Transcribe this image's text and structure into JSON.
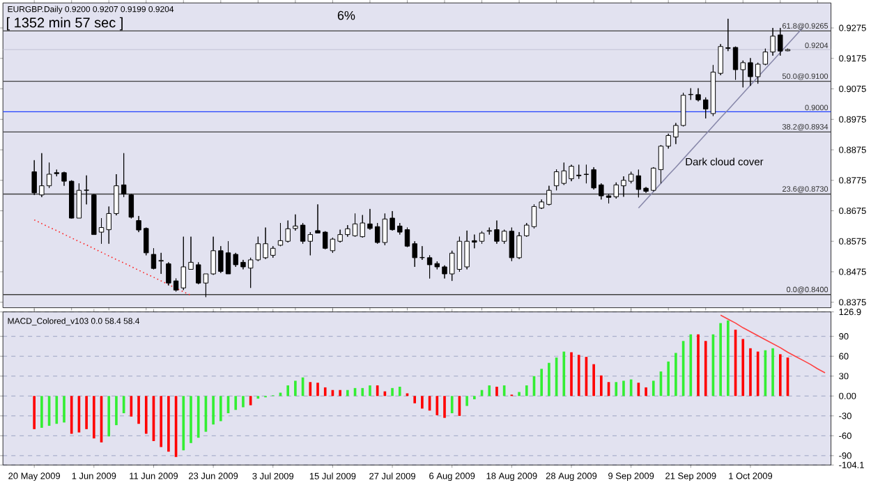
{
  "chart_data": [
    {
      "type": "candlestick",
      "title": "EURGBP.Daily 0.9200 0.9207 0.9199 0.9204",
      "annotations": [
        "[ 1352 min 57 sec ]",
        "6%",
        "Dark cloud cover"
      ],
      "tick_labels": "y",
      "categories": [
        null,
        null,
        null,
        null,
        null,
        null,
        null,
        null,
        null,
        null,
        null,
        null,
        null,
        null,
        null,
        null,
        null,
        null,
        null,
        null,
        null,
        null,
        null,
        null,
        null,
        null,
        null,
        null,
        null,
        null,
        null,
        null,
        null,
        null,
        null,
        null,
        null,
        null,
        null,
        null,
        null,
        null,
        null,
        null,
        null,
        null,
        null,
        null,
        null,
        null,
        null,
        null,
        null,
        null,
        null,
        null,
        null,
        null,
        null,
        null,
        null,
        null,
        null,
        null,
        null,
        null,
        null,
        null,
        null,
        null,
        null,
        null,
        null,
        null,
        null,
        null,
        null,
        null,
        null,
        null,
        null,
        null,
        null,
        null,
        null,
        null,
        null,
        null,
        null,
        null,
        null,
        null,
        null,
        null,
        null,
        null,
        null,
        null,
        null,
        null,
        null,
        null,
        null,
        null,
        null,
        null,
        null
      ],
      "ohlc": [
        [
          0.8803,
          0.8841,
          0.8727,
          0.8734
        ],
        [
          0.8727,
          0.8864,
          0.872,
          0.8757
        ],
        [
          0.8757,
          0.8833,
          0.875,
          0.8795
        ],
        [
          0.88,
          0.881,
          0.8788,
          0.8797
        ],
        [
          0.88,
          0.8803,
          0.8757,
          0.8772
        ],
        [
          0.8772,
          0.8775,
          0.865,
          0.8651
        ],
        [
          0.8651,
          0.8765,
          0.8651,
          0.8742
        ],
        [
          0.8742,
          0.8791,
          0.8696,
          0.8743
        ],
        [
          0.8727,
          0.873,
          0.8597,
          0.8597
        ],
        [
          0.8605,
          0.8651,
          0.8567,
          0.862
        ],
        [
          0.8613,
          0.8689,
          0.8567,
          0.8666
        ],
        [
          0.8666,
          0.8795,
          0.866,
          0.8757
        ],
        [
          0.876,
          0.8864,
          0.872,
          0.873
        ],
        [
          0.8727,
          0.873,
          0.865,
          0.8654
        ],
        [
          0.8643,
          0.8658,
          0.8605,
          0.8612
        ],
        [
          0.8617,
          0.862,
          0.8529,
          0.8537
        ],
        [
          0.8532,
          0.8552,
          0.8483,
          0.8486
        ],
        [
          0.851,
          0.8537,
          0.8468,
          0.8512
        ],
        [
          0.8501,
          0.8506,
          0.843,
          0.8438
        ],
        [
          0.8445,
          0.8453,
          0.841,
          0.8415
        ],
        [
          0.8422,
          0.859,
          0.8415,
          0.8491
        ],
        [
          0.8483,
          0.859,
          0.8483,
          0.8506
        ],
        [
          0.8498,
          0.8506,
          0.8434,
          0.8438
        ],
        [
          0.8438,
          0.8468,
          0.8392,
          0.8468
        ],
        [
          0.8468,
          0.859,
          0.8465,
          0.8544
        ],
        [
          0.8544,
          0.8559,
          0.8471,
          0.8476
        ],
        [
          0.8537,
          0.8575,
          0.8468,
          0.8468
        ],
        [
          0.8532,
          0.8537,
          0.8491,
          0.8498
        ],
        [
          0.8506,
          0.8514,
          0.8483,
          0.8491
        ],
        [
          0.8487,
          0.8521,
          0.8422,
          0.8514
        ],
        [
          0.8514,
          0.859,
          0.851,
          0.8567
        ],
        [
          0.8521,
          0.862,
          0.8517,
          0.8567
        ],
        [
          0.8529,
          0.8559,
          0.8521,
          0.8552
        ],
        [
          0.8562,
          0.8635,
          0.8559,
          0.8577
        ],
        [
          0.8575,
          0.8643,
          0.8571,
          0.8616
        ],
        [
          0.8617,
          0.8663,
          0.861,
          0.8625
        ],
        [
          0.8628,
          0.8635,
          0.8567,
          0.8575
        ],
        [
          0.8575,
          0.8605,
          0.8529,
          0.8597
        ],
        [
          0.861,
          0.8696,
          0.8602,
          0.8602
        ],
        [
          0.8605,
          0.8608,
          0.8549,
          0.8552
        ],
        [
          0.8544,
          0.8587,
          0.8537,
          0.8582
        ],
        [
          0.8575,
          0.8613,
          0.8571,
          0.8597
        ],
        [
          0.8597,
          0.8628,
          0.859,
          0.8616
        ],
        [
          0.8593,
          0.8666,
          0.859,
          0.8632
        ],
        [
          0.859,
          0.8661,
          0.8587,
          0.8635
        ],
        [
          0.8632,
          0.8681,
          0.8613,
          0.8617
        ],
        [
          0.8623,
          0.8635,
          0.8567,
          0.8571
        ],
        [
          0.8571,
          0.8666,
          0.8562,
          0.8648
        ],
        [
          0.8651,
          0.8674,
          0.861,
          0.8613
        ],
        [
          0.8625,
          0.8635,
          0.8597,
          0.8605
        ],
        [
          0.8613,
          0.862,
          0.8556,
          0.8559
        ],
        [
          0.8567,
          0.8575,
          0.8491,
          0.8521
        ],
        [
          0.8521,
          0.8559,
          0.8514,
          0.8522
        ],
        [
          0.8521,
          0.8529,
          0.8453,
          0.8498
        ],
        [
          0.8502,
          0.8509,
          0.8483,
          0.8491
        ],
        [
          0.8491,
          0.8496,
          0.8453,
          0.8468
        ],
        [
          0.8468,
          0.8544,
          0.8445,
          0.8536
        ],
        [
          0.8483,
          0.859,
          0.8475,
          0.8575
        ],
        [
          0.8491,
          0.861,
          0.8483,
          0.8575
        ],
        [
          0.8577,
          0.8597,
          0.8552,
          0.8572
        ],
        [
          0.8575,
          0.8608,
          0.8567,
          0.8602
        ],
        [
          0.8608,
          0.862,
          0.8597,
          0.861
        ],
        [
          0.8613,
          0.8643,
          0.8567,
          0.8575
        ],
        [
          0.8575,
          0.8613,
          0.8567,
          0.8608
        ],
        [
          0.8608,
          0.862,
          0.851,
          0.8521
        ],
        [
          0.8521,
          0.8605,
          0.8517,
          0.8593
        ],
        [
          0.8593,
          0.8635,
          0.859,
          0.8628
        ],
        [
          0.8623,
          0.8696,
          0.8617,
          0.8689
        ],
        [
          0.8684,
          0.8712,
          0.8681,
          0.8704
        ],
        [
          0.8696,
          0.8757,
          0.8693,
          0.8742
        ],
        [
          0.8757,
          0.8811,
          0.8742,
          0.8803
        ],
        [
          0.8765,
          0.8833,
          0.876,
          0.8806
        ],
        [
          0.878,
          0.8826,
          0.8772,
          0.8821
        ],
        [
          0.8792,
          0.8826,
          0.878,
          0.879
        ],
        [
          0.8794,
          0.8826,
          0.8765,
          0.8795
        ],
        [
          0.881,
          0.8818,
          0.8745,
          0.875
        ],
        [
          0.876,
          0.8765,
          0.8712,
          0.8724
        ],
        [
          0.8724,
          0.873,
          0.8699,
          0.8719
        ],
        [
          0.8721,
          0.8768,
          0.8715,
          0.876
        ],
        [
          0.8757,
          0.8788,
          0.8721,
          0.8775
        ],
        [
          0.8772,
          0.8803,
          0.8765,
          0.8795
        ],
        [
          0.879,
          0.881,
          0.8719,
          0.8745
        ],
        [
          0.8749,
          0.8753,
          0.8734,
          0.8739
        ],
        [
          0.8742,
          0.8818,
          0.8739,
          0.8815
        ],
        [
          0.881,
          0.8891,
          0.8765,
          0.8887
        ],
        [
          0.8887,
          0.8928,
          0.8879,
          0.8922
        ],
        [
          0.8917,
          0.8963,
          0.8894,
          0.8955
        ],
        [
          0.8955,
          0.9062,
          0.8952,
          0.9054
        ],
        [
          0.9056,
          0.9077,
          0.9039,
          0.9057
        ],
        [
          0.9056,
          0.9077,
          0.9034,
          0.9039
        ],
        [
          0.9039,
          0.9047,
          0.8978,
          0.9009
        ],
        [
          0.8994,
          0.9153,
          0.8986,
          0.913
        ],
        [
          0.9126,
          0.9222,
          0.912,
          0.9214
        ],
        [
          0.921,
          0.9305,
          0.9199,
          0.9208
        ],
        [
          0.9211,
          0.9214,
          0.9105,
          0.9138
        ],
        [
          0.9138,
          0.9168,
          0.908,
          0.9161
        ],
        [
          0.9161,
          0.9176,
          0.9085,
          0.9115
        ],
        [
          0.9115,
          0.9161,
          0.9092,
          0.9156
        ],
        [
          0.9156,
          0.9207,
          0.9153,
          0.9196
        ],
        [
          0.9196,
          0.9275,
          0.9184,
          0.9248
        ],
        [
          0.9252,
          0.9275,
          0.9184,
          0.9199
        ],
        [
          0.92,
          0.9207,
          0.9199,
          0.9204
        ],
        null,
        null,
        null,
        null,
        null
      ],
      "series": [
        {
          "type": "line",
          "values": [
            0.8645,
            0.8633,
            0.8621,
            0.861,
            0.8598,
            0.8586,
            0.8574,
            0.8563,
            0.8551,
            0.8539,
            0.8527,
            0.8515,
            0.8504,
            0.8492,
            0.848,
            0.8468,
            0.8457,
            0.8445,
            0.8433,
            0.8421,
            0.8409,
            0.8398,
            null,
            null,
            null,
            null,
            null,
            null,
            null,
            null,
            null,
            null,
            null,
            null,
            null,
            null,
            null,
            null,
            null,
            null,
            null,
            null,
            null,
            null,
            null,
            null,
            null,
            null,
            null,
            null,
            null,
            null,
            null,
            null,
            null,
            null,
            null,
            null,
            null,
            null,
            null,
            null,
            null,
            null,
            null,
            null,
            null,
            null,
            null,
            null,
            null,
            null,
            null,
            null,
            null,
            null,
            null,
            null,
            null,
            null,
            null,
            null,
            null,
            null,
            null,
            null,
            null,
            null,
            null,
            null,
            null,
            null,
            null,
            null,
            null,
            null,
            null,
            null,
            null,
            null,
            null,
            null,
            null,
            null,
            null,
            null,
            null
          ],
          "color": "#ff2020",
          "line_style": "dotted"
        },
        {
          "type": "line",
          "values": [
            null,
            null,
            null,
            null,
            null,
            null,
            null,
            null,
            null,
            null,
            null,
            null,
            null,
            null,
            null,
            null,
            null,
            null,
            null,
            null,
            null,
            null,
            null,
            null,
            null,
            null,
            null,
            null,
            null,
            null,
            null,
            null,
            null,
            null,
            null,
            null,
            null,
            null,
            null,
            null,
            null,
            null,
            null,
            null,
            null,
            null,
            null,
            null,
            null,
            null,
            null,
            null,
            null,
            null,
            null,
            null,
            null,
            null,
            null,
            null,
            null,
            null,
            null,
            null,
            null,
            null,
            null,
            null,
            null,
            null,
            null,
            null,
            null,
            null,
            null,
            null,
            null,
            null,
            null,
            null,
            null,
            0.8684,
            0.8711,
            0.8738,
            0.8765,
            0.8792,
            0.8818,
            0.8845,
            0.8872,
            0.8899,
            0.8926,
            0.8953,
            0.898,
            0.9006,
            0.9033,
            0.906,
            0.9087,
            0.9114,
            0.9141,
            0.9167,
            0.9194,
            0.9221,
            0.9248,
            0.9275,
            null,
            null,
            null
          ],
          "color": "#8888aa",
          "line_style": "solid"
        }
      ],
      "ylim": [
        0.8357,
        0.9357
      ],
      "yticks": [
        0.9275,
        0.9175,
        0.9075,
        0.8975,
        0.8875,
        0.8775,
        0.8675,
        0.8575,
        0.8475,
        0.8375
      ],
      "ref_lines": [
        {
          "axis": "y",
          "value": 0.9265,
          "label": "61.8@0.9265",
          "color": "#404040"
        },
        {
          "axis": "y",
          "value": 0.9204,
          "label": "0.9204",
          "color": "#c4c4d8"
        },
        {
          "axis": "y",
          "value": 0.91,
          "label": "50.0@0.9100",
          "color": "#404040"
        },
        {
          "axis": "y",
          "value": 0.9,
          "label": "0.9000",
          "color": "#2040ff"
        },
        {
          "axis": "y",
          "value": 0.8934,
          "label": "38.2@0.8934",
          "color": "#404040"
        },
        {
          "axis": "y",
          "value": 0.873,
          "label": "23.6@0.8730",
          "color": "#404040"
        },
        {
          "axis": "y",
          "value": 0.84,
          "label": "0.0@0.8400",
          "color": "#404040"
        }
      ]
    },
    {
      "type": "bar",
      "title": "MACD_Colored_v103 0.0 58.4 58.4",
      "grid": "y",
      "categories": [
        "20 May 2009",
        null,
        null,
        null,
        null,
        null,
        null,
        null,
        "1 Jun 2009",
        null,
        null,
        null,
        null,
        null,
        null,
        null,
        "11 Jun 2009",
        null,
        null,
        null,
        null,
        null,
        null,
        null,
        "23 Jun 2009",
        null,
        null,
        null,
        null,
        null,
        null,
        null,
        "3 Jul 2009",
        null,
        null,
        null,
        null,
        null,
        null,
        null,
        "15 Jul 2009",
        null,
        null,
        null,
        null,
        null,
        null,
        null,
        "27 Jul 2009",
        null,
        null,
        null,
        null,
        null,
        null,
        null,
        "6 Aug 2009",
        null,
        null,
        null,
        null,
        null,
        null,
        null,
        "18 Aug 2009",
        null,
        null,
        null,
        null,
        null,
        null,
        null,
        "28 Aug 2009",
        null,
        null,
        null,
        null,
        null,
        null,
        null,
        "9 Sep 2009",
        null,
        null,
        null,
        null,
        null,
        null,
        null,
        "21 Sep 2009",
        null,
        null,
        null,
        null,
        null,
        null,
        null,
        "1 Oct 2009",
        null,
        null,
        null,
        null,
        null,
        null,
        null,
        null,
        null,
        null
      ],
      "series": [
        {
          "type": "bar",
          "values": [
            -50,
            -48,
            -45,
            -42,
            -40,
            -57,
            -55,
            -50,
            -64,
            -70,
            -61,
            -44,
            -26,
            -31,
            -42,
            -57,
            -68,
            -77,
            -84,
            -92,
            -82,
            -71,
            -63,
            -54,
            -43,
            -38,
            -26,
            -21,
            -17,
            -14,
            -4,
            -2,
            1,
            5,
            16,
            23,
            28,
            21,
            20,
            13,
            9,
            9,
            9,
            12,
            12,
            16,
            16,
            7,
            12,
            14,
            4,
            -11,
            -19,
            -22,
            -29,
            -33,
            -26,
            -30,
            -15,
            -5,
            9,
            16,
            14,
            16,
            2,
            6,
            16,
            30,
            41,
            50,
            58,
            67,
            66,
            62,
            59,
            48,
            31,
            21,
            21,
            23,
            25,
            20,
            13,
            23,
            37,
            52,
            65,
            83,
            93,
            93,
            83,
            93,
            110,
            114,
            100,
            86,
            72,
            67,
            69,
            72,
            63,
            58,
            null,
            null,
            null,
            null,
            null
          ],
          "colors": [
            "#ff0000",
            "#33ee33",
            "#33ee33",
            "#33ee33",
            "#33ee33",
            "#ff0000",
            "#ff0000",
            "#ff0000",
            "#ff0000",
            "#ff0000",
            "#33ee33",
            "#33ee33",
            "#33ee33",
            "#ff0000",
            "#ff0000",
            "#ff0000",
            "#ff0000",
            "#ff0000",
            "#ff0000",
            "#ff0000",
            "#33ee33",
            "#33ee33",
            "#33ee33",
            "#33ee33",
            "#33ee33",
            "#33ee33",
            "#33ee33",
            "#33ee33",
            "#33ee33",
            "#ff0000",
            "#33ee33",
            "#33ee33",
            "#33ee33",
            "#33ee33",
            "#33ee33",
            "#33ee33",
            "#33ee33",
            "#ff0000",
            "#ff0000",
            "#ff0000",
            "#ff0000",
            "#ff0000",
            "#33ee33",
            "#33ee33",
            "#33ee33",
            "#33ee33",
            "#ff0000",
            "#ff0000",
            "#33ee33",
            "#33ee33",
            "#ff0000",
            "#ff0000",
            "#ff0000",
            "#ff0000",
            "#ff0000",
            "#ff0000",
            "#33ee33",
            "#ff0000",
            "#33ee33",
            "#33ee33",
            "#33ee33",
            "#33ee33",
            "#ff0000",
            "#33ee33",
            "#ff0000",
            "#33ee33",
            "#33ee33",
            "#33ee33",
            "#33ee33",
            "#33ee33",
            "#33ee33",
            "#33ee33",
            "#ff0000",
            "#ff0000",
            "#ff0000",
            "#ff0000",
            "#ff0000",
            "#ff0000",
            "#33ee33",
            "#33ee33",
            "#33ee33",
            "#ff0000",
            "#ff0000",
            "#33ee33",
            "#33ee33",
            "#33ee33",
            "#33ee33",
            "#33ee33",
            "#33ee33",
            "#ff0000",
            "#ff0000",
            "#33ee33",
            "#33ee33",
            "#33ee33",
            "#ff0000",
            "#ff0000",
            "#ff0000",
            "#ff0000",
            "#33ee33",
            "#33ee33",
            "#ff0000",
            "#ff0000",
            null,
            null,
            null,
            null,
            null
          ]
        },
        {
          "type": "line",
          "values": [
            null,
            null,
            null,
            null,
            null,
            null,
            null,
            null,
            null,
            null,
            null,
            null,
            null,
            null,
            null,
            null,
            null,
            null,
            null,
            null,
            null,
            null,
            null,
            null,
            null,
            null,
            null,
            null,
            null,
            null,
            null,
            null,
            null,
            null,
            null,
            null,
            null,
            null,
            null,
            null,
            null,
            null,
            null,
            null,
            null,
            null,
            null,
            null,
            null,
            null,
            null,
            null,
            null,
            null,
            null,
            null,
            null,
            null,
            null,
            null,
            null,
            null,
            null,
            null,
            null,
            null,
            null,
            null,
            null,
            null,
            null,
            null,
            null,
            null,
            null,
            null,
            null,
            null,
            null,
            null,
            null,
            null,
            null,
            null,
            null,
            null,
            null,
            null,
            null,
            null,
            null,
            null,
            122,
            116,
            110,
            103,
            97,
            91,
            85,
            79,
            73,
            66,
            60,
            54,
            48,
            41,
            35
          ],
          "color": "#ff4040",
          "line_style": "solid"
        }
      ],
      "ylim": [
        -104.1,
        126.9
      ],
      "yticks": [
        126.9,
        90,
        60,
        30,
        {
          "value": 0,
          "label": "0.00"
        },
        -30,
        -60,
        -90,
        -104.1
      ]
    }
  ]
}
